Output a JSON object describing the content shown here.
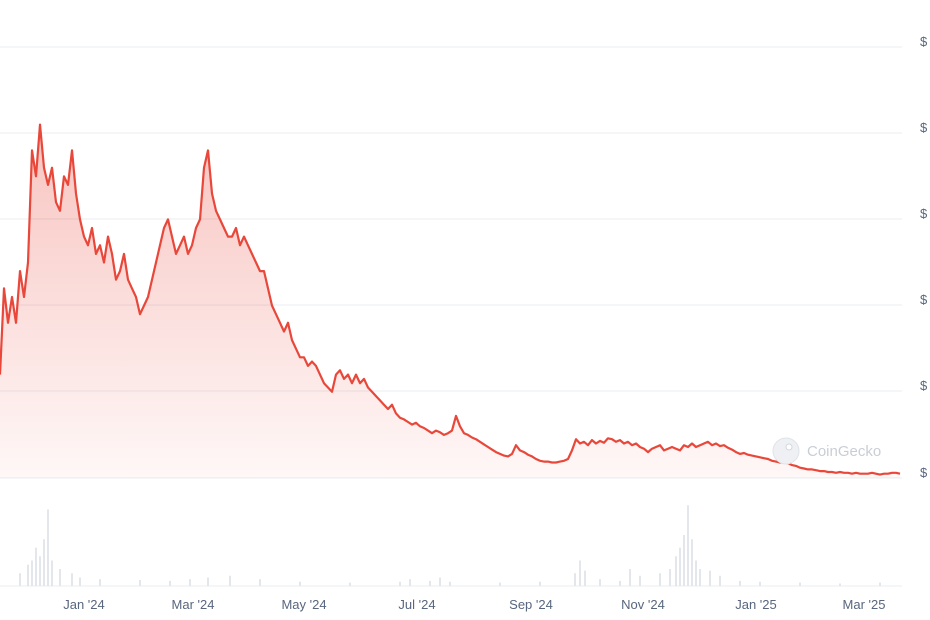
{
  "watermark": "CoinGecko",
  "colors": {
    "line": "#e8473a",
    "grid": "#e9ecef",
    "axis_text": "#58667e",
    "volume": "#e3e6ea"
  },
  "chart_data": {
    "type": "area",
    "title": "",
    "xlabel": "",
    "ylabel": "",
    "grid": true,
    "x_ticks": [
      "Jan '24",
      "Mar '24",
      "May '24",
      "Jul '24",
      "Sep '24",
      "Nov '24",
      "Jan '25",
      "Mar '25"
    ],
    "y_ticks": [
      "$",
      "$",
      "$",
      "$",
      "$",
      "$"
    ],
    "y_range_note": "price axis labels show only \"$\"; values below are relative price units read against the gridlines (0 = lowest labelled gridline, 5 = top gridline)",
    "ylim": [
      0,
      5
    ],
    "series": [
      {
        "values": [
          [
            0,
            1.2
          ],
          [
            4,
            2.2
          ],
          [
            8,
            1.8
          ],
          [
            12,
            2.1
          ],
          [
            16,
            1.8
          ],
          [
            20,
            2.4
          ],
          [
            24,
            2.1
          ],
          [
            28,
            2.5
          ],
          [
            32,
            3.8
          ],
          [
            36,
            3.5
          ],
          [
            40,
            4.1
          ],
          [
            44,
            3.6
          ],
          [
            48,
            3.4
          ],
          [
            52,
            3.6
          ],
          [
            56,
            3.2
          ],
          [
            60,
            3.1
          ],
          [
            64,
            3.5
          ],
          [
            68,
            3.4
          ],
          [
            72,
            3.8
          ],
          [
            76,
            3.3
          ],
          [
            80,
            3.0
          ],
          [
            84,
            2.8
          ],
          [
            88,
            2.7
          ],
          [
            92,
            2.9
          ],
          [
            96,
            2.6
          ],
          [
            100,
            2.7
          ],
          [
            104,
            2.5
          ],
          [
            108,
            2.8
          ],
          [
            112,
            2.6
          ],
          [
            116,
            2.3
          ],
          [
            120,
            2.4
          ],
          [
            124,
            2.6
          ],
          [
            128,
            2.3
          ],
          [
            132,
            2.2
          ],
          [
            136,
            2.1
          ],
          [
            140,
            1.9
          ],
          [
            144,
            2.0
          ],
          [
            148,
            2.1
          ],
          [
            152,
            2.3
          ],
          [
            156,
            2.5
          ],
          [
            160,
            2.7
          ],
          [
            164,
            2.9
          ],
          [
            168,
            3.0
          ],
          [
            172,
            2.8
          ],
          [
            176,
            2.6
          ],
          [
            180,
            2.7
          ],
          [
            184,
            2.8
          ],
          [
            188,
            2.6
          ],
          [
            192,
            2.7
          ],
          [
            196,
            2.9
          ],
          [
            200,
            3.0
          ],
          [
            204,
            3.6
          ],
          [
            208,
            3.8
          ],
          [
            212,
            3.3
          ],
          [
            216,
            3.1
          ],
          [
            220,
            3.0
          ],
          [
            224,
            2.9
          ],
          [
            228,
            2.8
          ],
          [
            232,
            2.8
          ],
          [
            236,
            2.9
          ],
          [
            240,
            2.7
          ],
          [
            244,
            2.8
          ],
          [
            248,
            2.7
          ],
          [
            252,
            2.6
          ],
          [
            256,
            2.5
          ],
          [
            260,
            2.4
          ],
          [
            264,
            2.4
          ],
          [
            268,
            2.2
          ],
          [
            272,
            2.0
          ],
          [
            276,
            1.9
          ],
          [
            280,
            1.8
          ],
          [
            284,
            1.7
          ],
          [
            288,
            1.8
          ],
          [
            292,
            1.6
          ],
          [
            296,
            1.5
          ],
          [
            300,
            1.4
          ],
          [
            304,
            1.4
          ],
          [
            308,
            1.3
          ],
          [
            312,
            1.35
          ],
          [
            316,
            1.3
          ],
          [
            320,
            1.2
          ],
          [
            324,
            1.1
          ],
          [
            328,
            1.05
          ],
          [
            332,
            1.0
          ],
          [
            336,
            1.2
          ],
          [
            340,
            1.25
          ],
          [
            344,
            1.15
          ],
          [
            348,
            1.2
          ],
          [
            352,
            1.1
          ],
          [
            356,
            1.2
          ],
          [
            360,
            1.1
          ],
          [
            364,
            1.15
          ],
          [
            368,
            1.05
          ],
          [
            372,
            1.0
          ],
          [
            376,
            0.95
          ],
          [
            380,
            0.9
          ],
          [
            384,
            0.85
          ],
          [
            388,
            0.8
          ],
          [
            392,
            0.85
          ],
          [
            396,
            0.75
          ],
          [
            400,
            0.7
          ],
          [
            404,
            0.68
          ],
          [
            408,
            0.65
          ],
          [
            412,
            0.62
          ],
          [
            416,
            0.64
          ],
          [
            420,
            0.6
          ],
          [
            424,
            0.58
          ],
          [
            428,
            0.55
          ],
          [
            432,
            0.52
          ],
          [
            436,
            0.55
          ],
          [
            440,
            0.53
          ],
          [
            444,
            0.5
          ],
          [
            448,
            0.52
          ],
          [
            452,
            0.55
          ],
          [
            456,
            0.72
          ],
          [
            460,
            0.6
          ],
          [
            464,
            0.52
          ],
          [
            468,
            0.5
          ],
          [
            472,
            0.47
          ],
          [
            476,
            0.45
          ],
          [
            480,
            0.42
          ],
          [
            484,
            0.39
          ],
          [
            488,
            0.36
          ],
          [
            492,
            0.33
          ],
          [
            496,
            0.3
          ],
          [
            500,
            0.28
          ],
          [
            504,
            0.26
          ],
          [
            508,
            0.25
          ],
          [
            512,
            0.28
          ],
          [
            516,
            0.38
          ],
          [
            520,
            0.32
          ],
          [
            524,
            0.3
          ],
          [
            528,
            0.27
          ],
          [
            532,
            0.25
          ],
          [
            536,
            0.22
          ],
          [
            540,
            0.2
          ],
          [
            544,
            0.19
          ],
          [
            548,
            0.19
          ],
          [
            552,
            0.18
          ],
          [
            556,
            0.18
          ],
          [
            560,
            0.19
          ],
          [
            564,
            0.2
          ],
          [
            568,
            0.22
          ],
          [
            572,
            0.32
          ],
          [
            576,
            0.45
          ],
          [
            580,
            0.4
          ],
          [
            584,
            0.42
          ],
          [
            588,
            0.38
          ],
          [
            592,
            0.44
          ],
          [
            596,
            0.4
          ],
          [
            600,
            0.43
          ],
          [
            604,
            0.41
          ],
          [
            608,
            0.46
          ],
          [
            612,
            0.45
          ],
          [
            616,
            0.42
          ],
          [
            620,
            0.44
          ],
          [
            624,
            0.4
          ],
          [
            628,
            0.42
          ],
          [
            632,
            0.38
          ],
          [
            636,
            0.4
          ],
          [
            640,
            0.36
          ],
          [
            644,
            0.34
          ],
          [
            648,
            0.3
          ],
          [
            652,
            0.34
          ],
          [
            656,
            0.36
          ],
          [
            660,
            0.38
          ],
          [
            664,
            0.32
          ],
          [
            668,
            0.34
          ],
          [
            672,
            0.36
          ],
          [
            676,
            0.34
          ],
          [
            680,
            0.32
          ],
          [
            684,
            0.38
          ],
          [
            688,
            0.36
          ],
          [
            692,
            0.4
          ],
          [
            696,
            0.36
          ],
          [
            700,
            0.38
          ],
          [
            704,
            0.4
          ],
          [
            708,
            0.42
          ],
          [
            712,
            0.38
          ],
          [
            716,
            0.4
          ],
          [
            720,
            0.37
          ],
          [
            724,
            0.38
          ],
          [
            728,
            0.35
          ],
          [
            732,
            0.33
          ],
          [
            736,
            0.3
          ],
          [
            740,
            0.28
          ],
          [
            744,
            0.29
          ],
          [
            748,
            0.27
          ],
          [
            752,
            0.26
          ],
          [
            756,
            0.25
          ],
          [
            760,
            0.24
          ],
          [
            764,
            0.23
          ],
          [
            768,
            0.22
          ],
          [
            772,
            0.2
          ],
          [
            776,
            0.19
          ],
          [
            780,
            0.18
          ],
          [
            784,
            0.18
          ],
          [
            788,
            0.17
          ],
          [
            792,
            0.15
          ],
          [
            796,
            0.14
          ],
          [
            800,
            0.12
          ],
          [
            804,
            0.11
          ],
          [
            808,
            0.1
          ],
          [
            812,
            0.1
          ],
          [
            816,
            0.09
          ],
          [
            820,
            0.08
          ],
          [
            824,
            0.08
          ],
          [
            828,
            0.07
          ],
          [
            832,
            0.07
          ],
          [
            836,
            0.06
          ],
          [
            840,
            0.07
          ],
          [
            844,
            0.06
          ],
          [
            848,
            0.06
          ],
          [
            852,
            0.05
          ],
          [
            856,
            0.06
          ],
          [
            860,
            0.05
          ],
          [
            864,
            0.05
          ],
          [
            868,
            0.05
          ],
          [
            872,
            0.06
          ],
          [
            876,
            0.05
          ],
          [
            880,
            0.04
          ],
          [
            884,
            0.05
          ],
          [
            888,
            0.05
          ],
          [
            892,
            0.06
          ],
          [
            896,
            0.06
          ],
          [
            900,
            0.05
          ]
        ]
      }
    ],
    "volume": [
      [
        20,
        0.15
      ],
      [
        28,
        0.25
      ],
      [
        32,
        0.3
      ],
      [
        36,
        0.45
      ],
      [
        40,
        0.35
      ],
      [
        44,
        0.55
      ],
      [
        48,
        0.9
      ],
      [
        52,
        0.3
      ],
      [
        60,
        0.2
      ],
      [
        72,
        0.15
      ],
      [
        80,
        0.1
      ],
      [
        100,
        0.08
      ],
      [
        140,
        0.07
      ],
      [
        170,
        0.06
      ],
      [
        190,
        0.08
      ],
      [
        208,
        0.1
      ],
      [
        230,
        0.12
      ],
      [
        260,
        0.08
      ],
      [
        300,
        0.05
      ],
      [
        350,
        0.04
      ],
      [
        400,
        0.05
      ],
      [
        410,
        0.08
      ],
      [
        430,
        0.06
      ],
      [
        440,
        0.1
      ],
      [
        450,
        0.05
      ],
      [
        500,
        0.04
      ],
      [
        540,
        0.05
      ],
      [
        575,
        0.15
      ],
      [
        580,
        0.3
      ],
      [
        585,
        0.18
      ],
      [
        600,
        0.08
      ],
      [
        620,
        0.06
      ],
      [
        630,
        0.2
      ],
      [
        640,
        0.12
      ],
      [
        660,
        0.15
      ],
      [
        670,
        0.2
      ],
      [
        676,
        0.35
      ],
      [
        680,
        0.45
      ],
      [
        684,
        0.6
      ],
      [
        688,
        0.95
      ],
      [
        692,
        0.55
      ],
      [
        696,
        0.3
      ],
      [
        700,
        0.2
      ],
      [
        710,
        0.18
      ],
      [
        720,
        0.12
      ],
      [
        740,
        0.06
      ],
      [
        760,
        0.05
      ],
      [
        800,
        0.04
      ],
      [
        840,
        0.03
      ],
      [
        880,
        0.04
      ]
    ]
  }
}
